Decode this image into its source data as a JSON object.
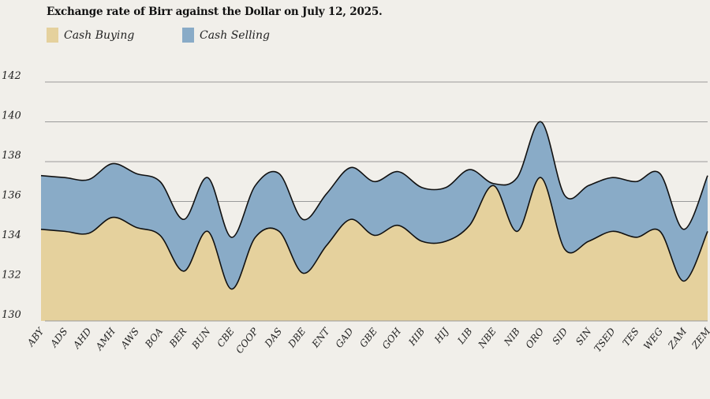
{
  "chart_data": {
    "type": "area",
    "title": "Exchange rate of Birr against the Dollar on July 12, 2025.",
    "ylim": [
      130,
      142
    ],
    "yticks": [
      130,
      132,
      134,
      136,
      138,
      140,
      142
    ],
    "grid": true,
    "legend_position": "top-left",
    "categories": [
      "ABY",
      "ADS",
      "AHD",
      "AMH",
      "AWS",
      "BOA",
      "BER",
      "BUN",
      "CBE",
      "COOP",
      "DAS",
      "DBE",
      "ENT",
      "GAD",
      "GBE",
      "GOH",
      "HIB",
      "HIJ",
      "LIB",
      "NBE",
      "NIB",
      "ORO",
      "SID",
      "SIN",
      "TSED",
      "TES",
      "WEG",
      "ZAM",
      "ZEM"
    ],
    "series": [
      {
        "name": "Cash Buying",
        "color": "#e5d19d",
        "values": [
          134.6,
          134.5,
          134.4,
          135.2,
          134.7,
          134.3,
          132.5,
          134.5,
          131.6,
          134.2,
          134.5,
          132.4,
          133.8,
          135.1,
          134.3,
          134.8,
          134.0,
          134.0,
          134.8,
          136.8,
          134.5,
          137.2,
          133.6,
          134.0,
          134.5,
          134.2,
          134.5,
          132.0,
          134.5
        ]
      },
      {
        "name": "Cash Selling",
        "color": "#89abc7",
        "values": [
          137.3,
          137.2,
          137.1,
          137.9,
          137.4,
          137.0,
          135.1,
          137.2,
          134.2,
          136.8,
          137.4,
          135.1,
          136.4,
          137.7,
          137.0,
          137.5,
          136.7,
          136.7,
          137.6,
          136.9,
          137.2,
          140.0,
          136.3,
          136.8,
          137.2,
          137.0,
          137.4,
          134.6,
          137.3
        ]
      }
    ]
  }
}
